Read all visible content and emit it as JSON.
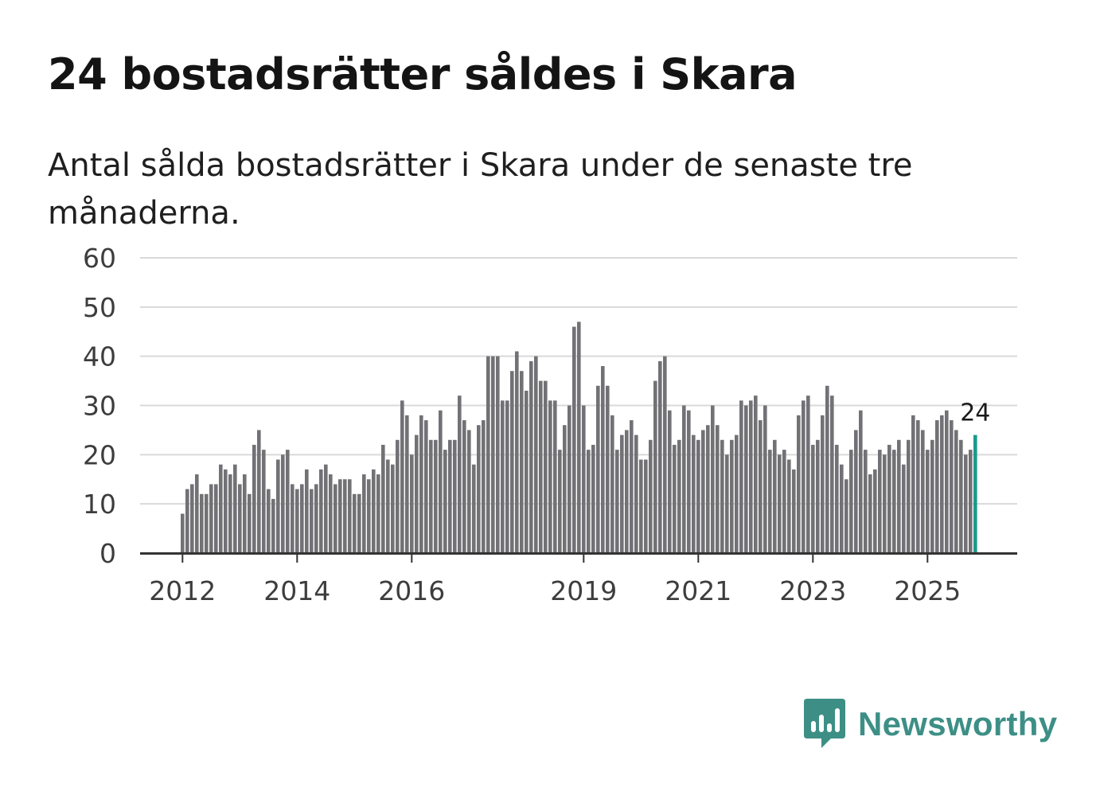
{
  "colors": {
    "bar": "#727176",
    "highlight": "#1a9a8c",
    "grid": "#d9d9d9",
    "axis": "#333333",
    "brand": "#3d8f86"
  },
  "brand": {
    "name": "Newsworthy",
    "icon": "newsworthy-logo-icon"
  },
  "chart_data": {
    "type": "bar",
    "title": "24 bostadsrätter såldes i Skara",
    "subtitle": "Antal sålda bostadsrätter i Skara under de senaste tre månaderna.",
    "xlabel": "",
    "ylabel": "",
    "ylim": [
      0,
      60
    ],
    "yticks": [
      0,
      10,
      20,
      30,
      40,
      50,
      60
    ],
    "grid": true,
    "xticks": [
      {
        "label": "2012",
        "year": 2012
      },
      {
        "label": "2014",
        "year": 2014
      },
      {
        "label": "2016",
        "year": 2016
      },
      {
        "label": "2019",
        "year": 2019
      },
      {
        "label": "2021",
        "year": 2021
      },
      {
        "label": "2023",
        "year": 2023
      },
      {
        "label": "2025",
        "year": 2025
      }
    ],
    "start_period": "2012-01",
    "end_period": "2025-10",
    "values": [
      8,
      13,
      14,
      16,
      12,
      12,
      14,
      14,
      18,
      17,
      16,
      18,
      14,
      16,
      12,
      22,
      25,
      21,
      13,
      11,
      19,
      20,
      21,
      14,
      13,
      14,
      17,
      13,
      14,
      17,
      18,
      16,
      14,
      15,
      15,
      15,
      12,
      12,
      16,
      15,
      17,
      16,
      22,
      19,
      18,
      23,
      31,
      28,
      20,
      24,
      28,
      27,
      23,
      23,
      29,
      21,
      23,
      23,
      32,
      27,
      25,
      18,
      26,
      27,
      40,
      40,
      40,
      31,
      31,
      37,
      41,
      37,
      33,
      39,
      40,
      35,
      35,
      31,
      31,
      21,
      26,
      30,
      46,
      47,
      30,
      21,
      22,
      34,
      38,
      34,
      28,
      21,
      24,
      25,
      27,
      24,
      19,
      19,
      23,
      35,
      39,
      40,
      29,
      22,
      23,
      30,
      29,
      24,
      23,
      25,
      26,
      30,
      26,
      23,
      20,
      23,
      24,
      31,
      30,
      31,
      32,
      27,
      30,
      21,
      23,
      20,
      21,
      19,
      17,
      28,
      31,
      32,
      22,
      23,
      28,
      34,
      32,
      22,
      18,
      15,
      21,
      25,
      29,
      21,
      16,
      17,
      21,
      20,
      22,
      21,
      23,
      18,
      23,
      28,
      27,
      25,
      21,
      23,
      27,
      28,
      29,
      27,
      25,
      23,
      20,
      21,
      24
    ],
    "highlight": {
      "index": 166,
      "value": 24,
      "label": "24"
    }
  }
}
